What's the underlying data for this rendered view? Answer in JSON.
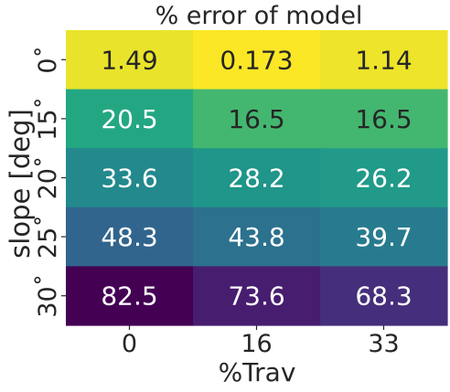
{
  "chart_data": {
    "type": "heatmap",
    "title": "% error of model",
    "xlabel": "%Trav",
    "ylabel": "slope [deg]",
    "x_categories": [
      "0",
      "16",
      "33"
    ],
    "y_categories": [
      "0˚",
      "15˚",
      "20˚",
      "25˚",
      "30˚"
    ],
    "values": [
      [
        1.49,
        0.173,
        1.14
      ],
      [
        20.5,
        16.5,
        16.5
      ],
      [
        33.6,
        28.2,
        26.2
      ],
      [
        48.3,
        43.8,
        39.7
      ],
      [
        82.5,
        73.6,
        68.3
      ]
    ],
    "cell_labels": [
      [
        "1.49",
        "0.173",
        "1.14"
      ],
      [
        "20.5",
        "16.5",
        "16.5"
      ],
      [
        "33.6",
        "28.2",
        "26.2"
      ],
      [
        "48.3",
        "43.8",
        "39.7"
      ],
      [
        "82.5",
        "73.6",
        "68.3"
      ]
    ],
    "colormap": "viridis_r",
    "value_range": [
      0,
      82.5
    ],
    "grid": false,
    "legend": "none",
    "colors": {
      "text_dark": "#262626",
      "text_light": "#ffffff"
    }
  }
}
